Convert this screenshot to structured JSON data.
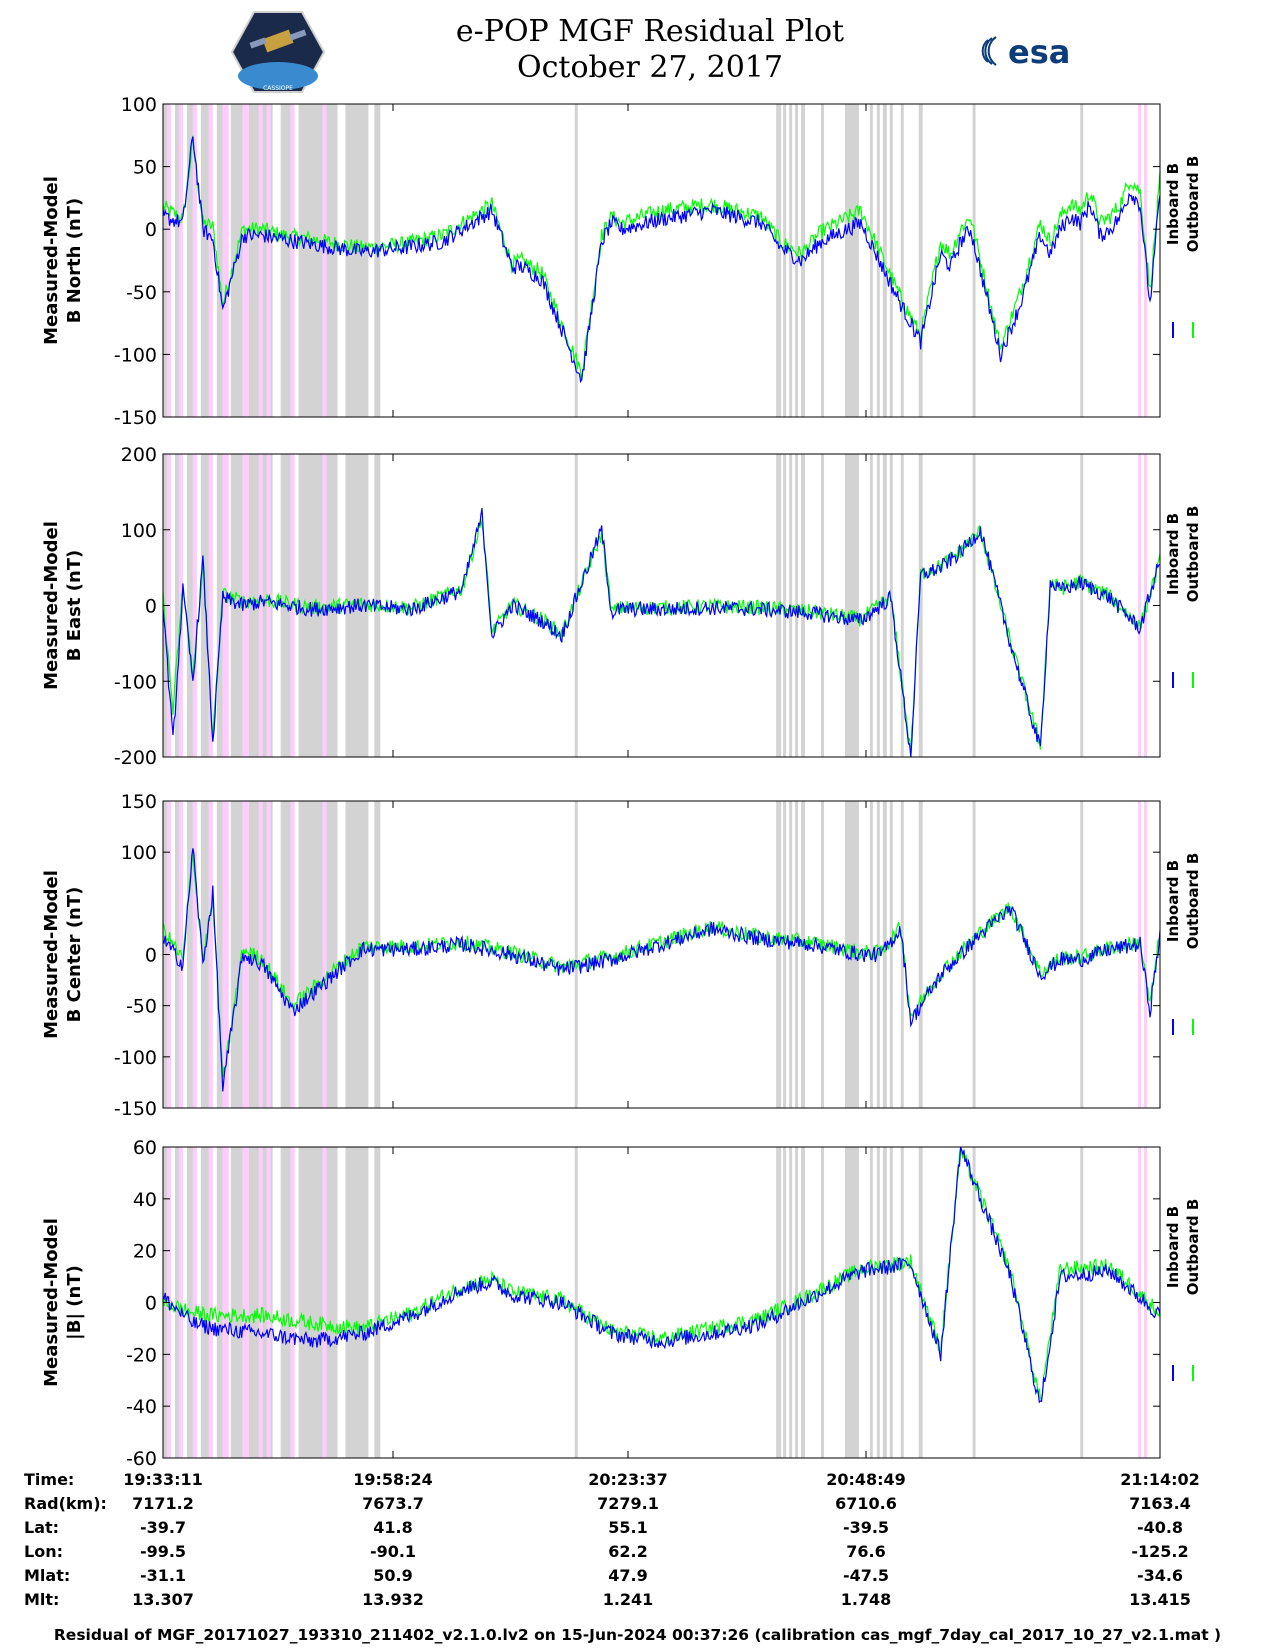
{
  "header": {
    "title_line1": "e-POP MGF Residual Plot",
    "title_line2": "October 27, 2017",
    "left_logo_text": "CASSIOPE",
    "right_logo_text": "esa"
  },
  "colors": {
    "inboard": "#0000ff",
    "outboard": "#00ff00",
    "gray_band": "#d3d3d3",
    "pink_band": "#ffccff"
  },
  "footer": "Residual of MGF_20171027_193310_211402_v2.1.0.lv2 on 15-Jun-2024 00:37:26 (calibration cas_mgf_7day_cal_2017_10_27_v2.1.mat )",
  "info_table": {
    "row_labels": [
      "Time:",
      "Rad(km):",
      "Lat:",
      "Lon:",
      "Mlat:",
      "Mlt:"
    ],
    "columns": [
      [
        "19:33:11",
        "7171.2",
        "-39.7",
        "-99.5",
        "-31.1",
        "13.307"
      ],
      [
        "19:58:24",
        "7673.7",
        "41.8",
        "-90.1",
        "50.9",
        "13.932"
      ],
      [
        "20:23:37",
        "7279.1",
        "55.1",
        "62.2",
        "47.9",
        "1.241"
      ],
      [
        "20:48:49",
        "6710.6",
        "-39.5",
        "76.6",
        "-47.5",
        "1.748"
      ],
      [
        "21:14:02",
        "7163.4",
        "-40.8",
        "-125.2",
        "-34.6",
        "13.415"
      ]
    ]
  },
  "chart_data": [
    {
      "type": "line",
      "ylabel_line1": "Measured-Model",
      "ylabel_line2": "B North (nT)",
      "ylim": [
        -150,
        100
      ],
      "yticks": [
        100,
        50,
        0,
        -50,
        -100,
        -150
      ],
      "legend": [
        "Inboard B",
        "Outboard B"
      ],
      "x_minutes_since_start": [
        0,
        2,
        3,
        4,
        5,
        6,
        8,
        10,
        12,
        15,
        20,
        24,
        28,
        33,
        35,
        36,
        38,
        42,
        44,
        45,
        46,
        50,
        55,
        60,
        62,
        64,
        66,
        70,
        74,
        76,
        78,
        79,
        80,
        81,
        84,
        86,
        88,
        89,
        90,
        91,
        92,
        93,
        94,
        95,
        96,
        97,
        98,
        99,
        100
      ],
      "series": [
        {
          "name": "Inboard B",
          "values": [
            10,
            5,
            75,
            0,
            -8,
            -65,
            -5,
            -5,
            -8,
            -12,
            -18,
            -15,
            -10,
            15,
            -30,
            -30,
            -40,
            -120,
            -10,
            5,
            0,
            8,
            15,
            5,
            -15,
            -25,
            -10,
            5,
            -60,
            -90,
            -20,
            -30,
            -10,
            0,
            -100,
            -60,
            -5,
            -20,
            0,
            10,
            5,
            20,
            -5,
            0,
            10,
            30,
            20,
            -60,
            30
          ]
        },
        {
          "name": "Outboard B",
          "values": [
            18,
            8,
            70,
            5,
            2,
            -60,
            0,
            0,
            -5,
            -8,
            -15,
            -12,
            -5,
            20,
            -28,
            -25,
            -35,
            -115,
            -5,
            10,
            5,
            15,
            20,
            10,
            -10,
            -20,
            -2,
            15,
            -55,
            -85,
            -10,
            -20,
            0,
            10,
            -95,
            -50,
            5,
            -10,
            10,
            20,
            15,
            30,
            5,
            10,
            20,
            40,
            30,
            -50,
            40
          ]
        }
      ]
    },
    {
      "type": "line",
      "ylabel_line1": "Measured-Model",
      "ylabel_line2": "B East (nT)",
      "ylim": [
        -200,
        200
      ],
      "yticks": [
        200,
        100,
        0,
        -100,
        -200
      ],
      "legend": [
        "Inboard B",
        "Outboard B"
      ],
      "x_minutes_since_start": [
        0,
        1,
        2,
        3,
        4,
        5,
        6,
        8,
        10,
        15,
        20,
        25,
        30,
        32,
        33,
        34,
        35,
        38,
        40,
        44,
        45,
        46,
        50,
        55,
        60,
        65,
        70,
        73,
        75,
        76,
        78,
        80,
        82,
        85,
        88,
        89,
        90,
        92,
        95,
        98,
        100
      ],
      "series": [
        {
          "name": "Inboard B",
          "values": [
            5,
            -180,
            20,
            -100,
            60,
            -180,
            10,
            0,
            5,
            -5,
            0,
            -5,
            20,
            120,
            -40,
            -20,
            0,
            -20,
            -40,
            100,
            -10,
            -5,
            -5,
            -3,
            -5,
            -10,
            -20,
            10,
            -200,
            40,
            50,
            70,
            100,
            -50,
            -190,
            30,
            20,
            30,
            10,
            -30,
            60
          ]
        },
        {
          "name": "Outboard B",
          "values": [
            10,
            -140,
            25,
            -95,
            55,
            -175,
            15,
            5,
            8,
            -3,
            2,
            -3,
            22,
            115,
            -35,
            -18,
            2,
            -18,
            -38,
            95,
            -8,
            -3,
            -3,
            -1,
            -3,
            -8,
            -18,
            12,
            -195,
            42,
            52,
            72,
            98,
            -48,
            -185,
            32,
            22,
            32,
            12,
            -28,
            58
          ]
        }
      ]
    },
    {
      "type": "line",
      "ylabel_line1": "Measured-Model",
      "ylabel_line2": "B Center (nT)",
      "ylim": [
        -150,
        150
      ],
      "yticks": [
        150,
        100,
        0,
        -50,
        -100,
        -150
      ],
      "legend": [
        "Inboard B",
        "Outboard B"
      ],
      "x_minutes_since_start": [
        0,
        2,
        3,
        4,
        5,
        6,
        8,
        10,
        13,
        20,
        25,
        30,
        35,
        40,
        45,
        50,
        55,
        60,
        65,
        70,
        72,
        74,
        75,
        78,
        82,
        85,
        88,
        90,
        92,
        95,
        98,
        99,
        100
      ],
      "series": [
        {
          "name": "Inboard B",
          "values": [
            15,
            -10,
            105,
            -10,
            60,
            -130,
            0,
            -10,
            -55,
            5,
            5,
            10,
            0,
            -15,
            -5,
            10,
            25,
            15,
            10,
            0,
            0,
            25,
            -65,
            -20,
            20,
            45,
            -20,
            -5,
            -5,
            5,
            10,
            -55,
            20
          ]
        },
        {
          "name": "Outboard B",
          "values": [
            25,
            -5,
            100,
            -5,
            55,
            -125,
            5,
            -5,
            -50,
            8,
            8,
            12,
            2,
            -12,
            -2,
            12,
            27,
            17,
            12,
            2,
            2,
            27,
            -60,
            -18,
            22,
            47,
            -18,
            -3,
            -3,
            7,
            12,
            -50,
            22
          ]
        }
      ]
    },
    {
      "type": "line",
      "ylabel_line1": "Measured-Model",
      "ylabel_line2": "|B| (nT)",
      "ylim": [
        -60,
        60
      ],
      "yticks": [
        60,
        40,
        20,
        0,
        -20,
        -40,
        -60
      ],
      "legend": [
        "Inboard B",
        "Outboard B"
      ],
      "x_minutes_since_start": [
        0,
        3,
        5,
        10,
        15,
        20,
        25,
        30,
        33,
        35,
        40,
        45,
        50,
        55,
        60,
        65,
        70,
        75,
        78,
        80,
        82,
        85,
        88,
        90,
        95,
        100
      ],
      "series": [
        {
          "name": "Inboard B",
          "values": [
            2,
            -8,
            -10,
            -12,
            -15,
            -12,
            -5,
            5,
            8,
            3,
            0,
            -12,
            -15,
            -12,
            -8,
            2,
            12,
            15,
            -20,
            60,
            40,
            10,
            -40,
            10,
            12,
            -5
          ]
        },
        {
          "name": "Outboard B",
          "values": [
            0,
            -4,
            -5,
            -5,
            -8,
            -10,
            -4,
            6,
            9,
            4,
            1,
            -11,
            -14,
            -10,
            -6,
            3,
            13,
            16,
            -18,
            59,
            41,
            12,
            -38,
            13,
            14,
            -4
          ]
        }
      ]
    }
  ]
}
